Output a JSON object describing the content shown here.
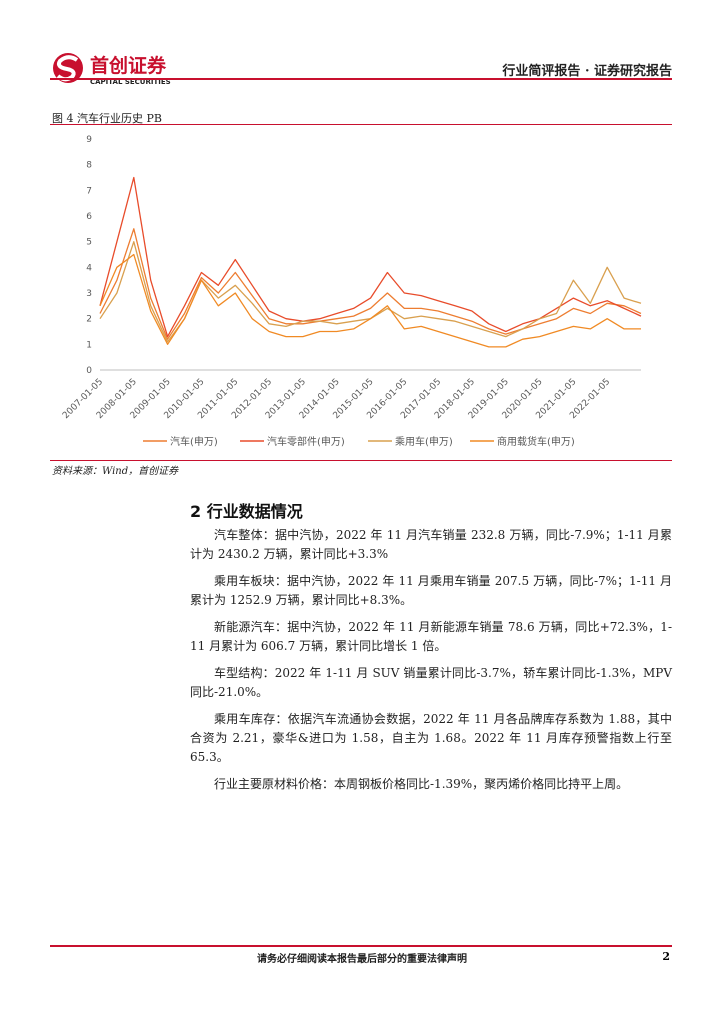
{
  "header": {
    "company": "首创证券",
    "company_en": "CAPITAL SECURITIES",
    "report_type": "行业简评报告 · 证券研究报告"
  },
  "figure": {
    "caption": "图 4  汽车行业历史 PB",
    "source": "资料来源：Wind，首创证券",
    "chart_data": {
      "type": "line",
      "categories": [
        "2007-01-05",
        null,
        "2008-01-05",
        null,
        "2009-01-05",
        null,
        "2010-01-05",
        null,
        "2011-01-05",
        null,
        "2012-01-05",
        null,
        "2013-01-05",
        null,
        "2014-01-05",
        null,
        "2015-01-05",
        null,
        "2016-01-05",
        null,
        "2017-01-05",
        null,
        "2018-01-05",
        null,
        "2019-01-05",
        null,
        "2020-01-05",
        null,
        "2021-01-05",
        null,
        "2022-01-05",
        null,
        null
      ],
      "series": [
        {
          "name": "汽车(申万)",
          "color": "#ED7D31",
          "values": [
            2.2,
            3.5,
            5.5,
            2.8,
            1.2,
            2.2,
            3.6,
            3.0,
            3.8,
            2.9,
            2.0,
            1.8,
            1.8,
            1.9,
            2.0,
            2.1,
            2.4,
            3.0,
            2.4,
            2.4,
            2.3,
            2.1,
            1.9,
            1.6,
            1.4,
            1.6,
            1.8,
            2.0,
            2.4,
            2.2,
            2.6,
            2.5,
            2.2
          ]
        },
        {
          "name": "汽车零部件(申万)",
          "color": "#E84C2B",
          "values": [
            2.5,
            5.0,
            7.5,
            3.5,
            1.3,
            2.5,
            3.8,
            3.3,
            4.3,
            3.3,
            2.3,
            2.0,
            1.9,
            2.0,
            2.2,
            2.4,
            2.8,
            3.8,
            3.0,
            2.9,
            2.7,
            2.5,
            2.3,
            1.8,
            1.5,
            1.8,
            2.0,
            2.4,
            2.8,
            2.5,
            2.7,
            2.4,
            2.1
          ]
        },
        {
          "name": "乘用车(申万)",
          "color": "#D9A04F",
          "values": [
            2.0,
            3.0,
            5.0,
            2.5,
            1.1,
            2.0,
            3.5,
            2.8,
            3.3,
            2.6,
            1.8,
            1.7,
            1.9,
            1.9,
            1.8,
            1.9,
            2.0,
            2.4,
            2.0,
            2.1,
            2.0,
            1.9,
            1.7,
            1.5,
            1.3,
            1.6,
            2.0,
            2.2,
            3.5,
            2.6,
            4.0,
            2.8,
            2.6
          ]
        },
        {
          "name": "商用载货车(申万)",
          "color": "#F08A24",
          "values": [
            2.5,
            4.0,
            4.5,
            2.3,
            1.0,
            2.0,
            3.5,
            2.5,
            3.0,
            2.0,
            1.5,
            1.3,
            1.3,
            1.5,
            1.5,
            1.6,
            2.0,
            2.5,
            1.6,
            1.7,
            1.5,
            1.3,
            1.1,
            0.9,
            0.9,
            1.2,
            1.3,
            1.5,
            1.7,
            1.6,
            2.0,
            1.6,
            1.6
          ]
        }
      ],
      "ylim": [
        0,
        9
      ],
      "yticks": [
        0,
        1,
        2,
        3,
        4,
        5,
        6,
        7,
        8,
        9
      ],
      "grid": false,
      "legend": "bottom"
    }
  },
  "section": {
    "heading": "2  行业数据情况",
    "paragraphs": [
      "汽车整体：据中汽协，2022 年 11 月汽车销量 232.8 万辆，同比-7.9%；1-11 月累计为 2430.2 万辆，累计同比+3.3%",
      "乘用车板块：据中汽协，2022 年 11 月乘用车销量 207.5 万辆，同比-7%；1-11 月累计为 1252.9 万辆，累计同比+8.3%。",
      "新能源汽车：据中汽协，2022 年 11 月新能源车销量 78.6 万辆，同比+72.3%，1-11 月累计为 606.7 万辆，累计同比增长 1 倍。",
      "车型结构：2022 年 1-11 月 SUV 销量累计同比-3.7%，轿车累计同比-1.3%，MPV 同比-21.0%。",
      "乘用车库存：依据汽车流通协会数据，2022 年 11 月各品牌库存系数为 1.88，其中合资为 2.21，豪华&进口为 1.58，自主为 1.68。2022 年 11 月库存预警指数上行至 65.3。",
      "行业主要原材料价格：本周钢板价格同比-1.39%，聚丙烯价格同比持平上周。"
    ]
  },
  "footer": {
    "notice": "请务必仔细阅读本报告最后部分的重要法律声明",
    "page": "2"
  }
}
